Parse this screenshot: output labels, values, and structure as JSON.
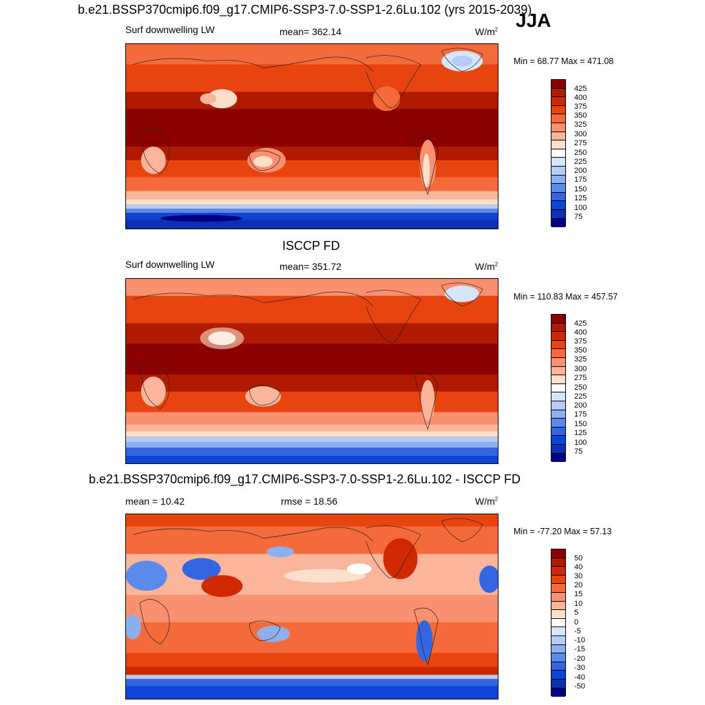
{
  "figure": {
    "title": "b.e21.BSSP370cmip6.f09_g17.CMIP6-SSP3-7.0-SSP1-2.6Lu.102 (yrs 2015-2039)",
    "season": "JJA"
  },
  "panels": [
    {
      "variable": "Surf downwelling LW",
      "stat": "mean= 362.14",
      "units": "W/m",
      "units_sup": "2",
      "minmax": "Min =  68.77 Max = 471.08",
      "colorbar_ticks": [
        "425",
        "400",
        "375",
        "350",
        "325",
        "300",
        "275",
        "250",
        "225",
        "200",
        "175",
        "150",
        "125",
        "100",
        "75"
      ]
    },
    {
      "title": "ISCCP FD",
      "variable": "Surf downwelling LW",
      "stat": "mean= 351.72",
      "units": "W/m",
      "units_sup": "2",
      "minmax": "Min = 110.83 Max = 457.57",
      "colorbar_ticks": [
        "425",
        "400",
        "375",
        "350",
        "325",
        "300",
        "275",
        "250",
        "225",
        "200",
        "175",
        "150",
        "125",
        "100",
        "75"
      ]
    },
    {
      "title": "b.e21.BSSP370cmip6.f09_g17.CMIP6-SSP3-7.0-SSP1-2.6Lu.102 - ISCCP FD",
      "stat_mean": "mean =  10.42",
      "stat_rmse": "rmse =  18.56",
      "units": "W/m",
      "units_sup": "2",
      "minmax": "Min = -77.20 Max =  57.13",
      "colorbar_ticks": [
        "50",
        "40",
        "30",
        "20",
        "15",
        "10",
        "5",
        "0",
        "-5",
        "-10",
        "-15",
        "-20",
        "-30",
        "-40",
        "-50"
      ]
    }
  ],
  "colors": {
    "abs_scale": [
      "#8b0000",
      "#b01a00",
      "#d02800",
      "#e84410",
      "#f56a3a",
      "#f99170",
      "#fbb59a",
      "#fde0cc",
      "#ffffff",
      "#d5e6fb",
      "#b3cdf6",
      "#8cb0ef",
      "#5c8aea",
      "#3366e0",
      "#0d45d6",
      "#0b2fb5",
      "#000080"
    ],
    "diff_scale": [
      "#8b0000",
      "#b01a00",
      "#d02800",
      "#e84410",
      "#f56a3a",
      "#f99170",
      "#fbb59a",
      "#fde0cc",
      "#ffffff",
      "#d5e6fb",
      "#b3cdf6",
      "#8cb0ef",
      "#5c8aea",
      "#3366e0",
      "#0d45d6",
      "#0b2fb5",
      "#000080"
    ]
  }
}
